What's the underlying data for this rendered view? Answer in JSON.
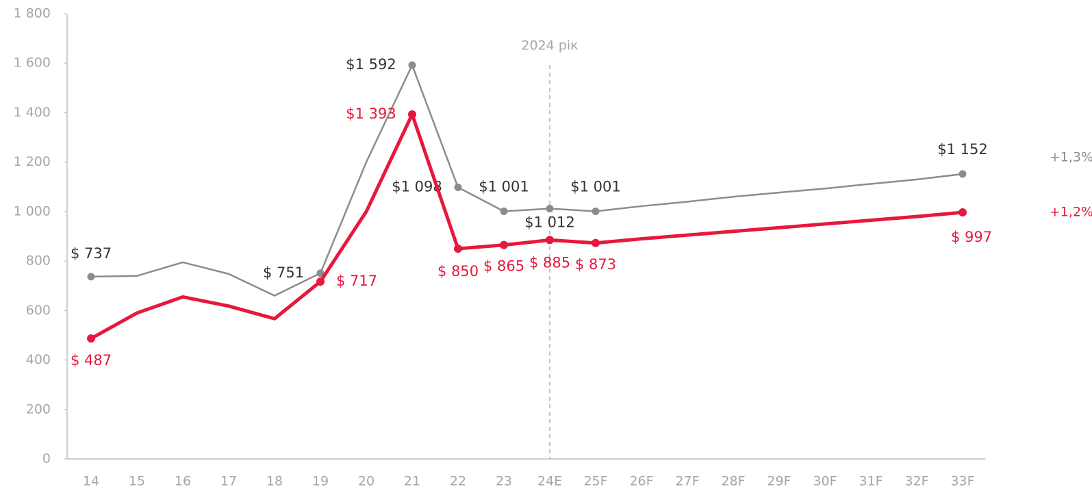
{
  "chart_data": {
    "type": "line",
    "categories": [
      "14",
      "15",
      "16",
      "17",
      "18",
      "19",
      "20",
      "21",
      "22",
      "23",
      "24E",
      "25F",
      "26F",
      "27F",
      "28F",
      "29F",
      "30F",
      "31F",
      "32F",
      "33F"
    ],
    "series": [
      {
        "color": "#8c8c8c",
        "end_label": "+1,3%",
        "values": [
          737,
          740,
          795,
          748,
          660,
          751,
          1200,
          1592,
          1098,
          1001,
          1012,
          1001,
          1022,
          1040,
          1060,
          1077,
          1093,
          1112,
          1130,
          1152
        ],
        "value_labels": [
          "$ 737",
          null,
          null,
          null,
          null,
          "$ 751",
          null,
          "$1 592",
          "$1 098",
          "$1 001",
          "$1 012",
          "$1 001",
          null,
          null,
          null,
          null,
          null,
          null,
          null,
          "$1 152"
        ]
      },
      {
        "color": "#e8173c",
        "end_label": "+1,2%",
        "values": [
          487,
          590,
          655,
          618,
          567,
          717,
          1000,
          1393,
          850,
          865,
          885,
          873,
          890,
          905,
          920,
          935,
          950,
          965,
          980,
          997
        ],
        "value_labels": [
          "$ 487",
          null,
          null,
          null,
          null,
          "$ 717",
          null,
          "$1 393",
          "$ 850",
          "$ 865",
          "$ 885",
          "$ 873",
          null,
          null,
          null,
          null,
          null,
          null,
          null,
          "$ 997"
        ]
      }
    ],
    "annotation": {
      "text": "2024 рік",
      "x": "24E"
    },
    "ylim": [
      0,
      1800
    ],
    "yticks": [
      0,
      200,
      400,
      600,
      800,
      {
        "value": 1000,
        "label": "1 000"
      },
      {
        "value": 1200,
        "label": "1 200"
      },
      {
        "value": 1400,
        "label": "1 400"
      },
      {
        "value": 1600,
        "label": "1 600"
      },
      {
        "value": 1800,
        "label": "1 800"
      }
    ]
  }
}
